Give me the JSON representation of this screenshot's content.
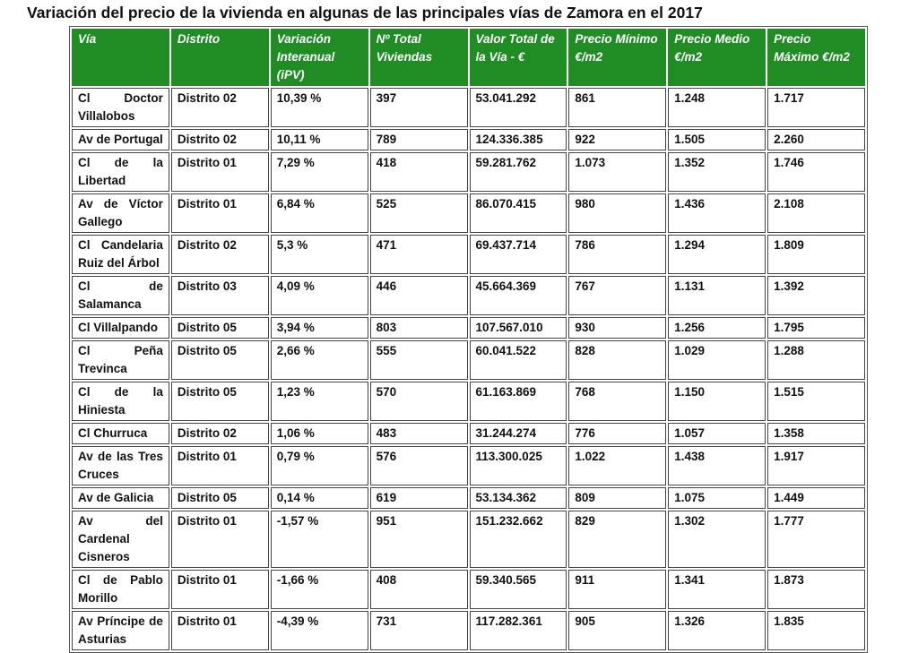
{
  "title": "Variación del precio de la vivienda en algunas de las principales vías de Zamora en el 2017",
  "table": {
    "header": [
      "Vía",
      "Distrito",
      "Variación Interanual (iPV)",
      "Nº Total Viviendas",
      "Valor Total de la Vía - €",
      "Precio Mínimo €/m2",
      "Precio Medio €/m2",
      "Precio Máximo €/m2"
    ],
    "rows": [
      [
        "Cl Doctor Villalobos",
        "Distrito 02",
        "10,39 %",
        "397",
        "53.041.292",
        "861",
        "1.248",
        "1.717"
      ],
      [
        "Av de Portugal",
        "Distrito 02",
        "10,11 %",
        "789",
        "124.336.385",
        "922",
        "1.505",
        "2.260"
      ],
      [
        "Cl de la Libertad",
        "Distrito 01",
        "7,29 %",
        "418",
        "59.281.762",
        "1.073",
        "1.352",
        "1.746"
      ],
      [
        "Av de Víctor Gallego",
        "Distrito 01",
        "6,84 %",
        "525",
        "86.070.415",
        "980",
        "1.436",
        "2.108"
      ],
      [
        "Cl Candelaria Ruiz del Árbol",
        "Distrito 02",
        "5,3 %",
        "471",
        "69.437.714",
        "786",
        "1.294",
        "1.809"
      ],
      [
        "Cl de Salamanca",
        "Distrito 03",
        "4,09 %",
        "446",
        "45.664.369",
        "767",
        "1.131",
        "1.392"
      ],
      [
        "Cl Villalpando",
        "Distrito 05",
        "3,94 %",
        "803",
        "107.567.010",
        "930",
        "1.256",
        "1.795"
      ],
      [
        "Cl Peña Trevinca",
        "Distrito 05",
        "2,66 %",
        "555",
        "60.041.522",
        "828",
        "1.029",
        "1.288"
      ],
      [
        "Cl de la Hiniesta",
        "Distrito 05",
        "1,23 %",
        "570",
        "61.163.869",
        "768",
        "1.150",
        "1.515"
      ],
      [
        "Cl Churruca",
        "Distrito 02",
        "1,06 %",
        "483",
        "31.244.274",
        "776",
        "1.057",
        "1.358"
      ],
      [
        "Av de las Tres Cruces",
        "Distrito 01",
        "0,79 %",
        "576",
        "113.300.025",
        "1.022",
        "1.438",
        "1.917"
      ],
      [
        "Av de Galicia",
        "Distrito 05",
        "0,14 %",
        "619",
        "53.134.362",
        "809",
        "1.075",
        "1.449"
      ],
      [
        "Av del Cardenal Cisneros",
        "Distrito 01",
        "-1,57 %",
        "951",
        "151.232.662",
        "829",
        "1.302",
        "1.777"
      ],
      [
        "Cl de Pablo Morillo",
        "Distrito 01",
        "-1,66 %",
        "408",
        "59.340.565",
        "911",
        "1.341",
        "1.873"
      ],
      [
        "Av Príncipe de Asturias",
        "Distrito 01",
        "-4,39 %",
        "731",
        "117.282.361",
        "905",
        "1.326",
        "1.835"
      ]
    ]
  }
}
